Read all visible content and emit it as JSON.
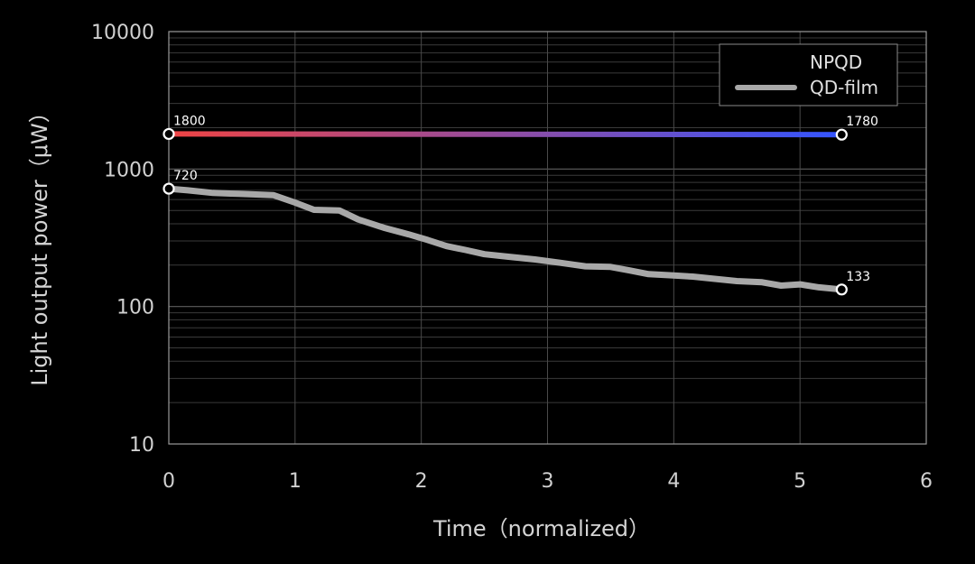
{
  "chart_data": {
    "type": "line",
    "title": "",
    "xlabel": "Time（normalized）",
    "ylabel": "Light output power（μW）",
    "xlim": [
      0,
      6
    ],
    "ylim": [
      10,
      10000
    ],
    "yscale": "log",
    "grid": true,
    "legend_position": "top-right",
    "x_ticks": [
      "0",
      "1",
      "2",
      "3",
      "4",
      "5",
      "6"
    ],
    "y_ticks": [
      "10",
      "100",
      "1000",
      "10000"
    ],
    "series": [
      {
        "name": "NPQD",
        "color_start": "#ef4444",
        "color_end": "#3355ff",
        "points": [
          [
            0,
            1800
          ],
          [
            5.33,
            1780
          ]
        ],
        "labels": [
          {
            "x": 0,
            "y": 1800,
            "text": "1800"
          },
          {
            "x": 5.33,
            "y": 1780,
            "text": "1780"
          }
        ]
      },
      {
        "name": "QD-film",
        "color": "#a8a8a8",
        "points": [
          [
            0,
            720
          ],
          [
            0.15,
            700
          ],
          [
            0.35,
            670
          ],
          [
            0.55,
            660
          ],
          [
            0.83,
            645
          ],
          [
            1.0,
            570
          ],
          [
            1.15,
            505
          ],
          [
            1.35,
            500
          ],
          [
            1.5,
            430
          ],
          [
            1.7,
            375
          ],
          [
            1.9,
            335
          ],
          [
            2.05,
            305
          ],
          [
            2.2,
            275
          ],
          [
            2.35,
            258
          ],
          [
            2.5,
            240
          ],
          [
            2.7,
            230
          ],
          [
            2.9,
            220
          ],
          [
            3.1,
            208
          ],
          [
            3.3,
            196
          ],
          [
            3.5,
            194
          ],
          [
            3.65,
            183
          ],
          [
            3.8,
            172
          ],
          [
            4.0,
            168
          ],
          [
            4.15,
            165
          ],
          [
            4.35,
            158
          ],
          [
            4.5,
            153
          ],
          [
            4.7,
            150
          ],
          [
            4.85,
            142
          ],
          [
            5.0,
            145
          ],
          [
            5.15,
            138
          ],
          [
            5.33,
            133
          ]
        ],
        "labels": [
          {
            "x": 0,
            "y": 720,
            "text": "720"
          },
          {
            "x": 5.33,
            "y": 133,
            "text": "133"
          }
        ]
      }
    ]
  }
}
